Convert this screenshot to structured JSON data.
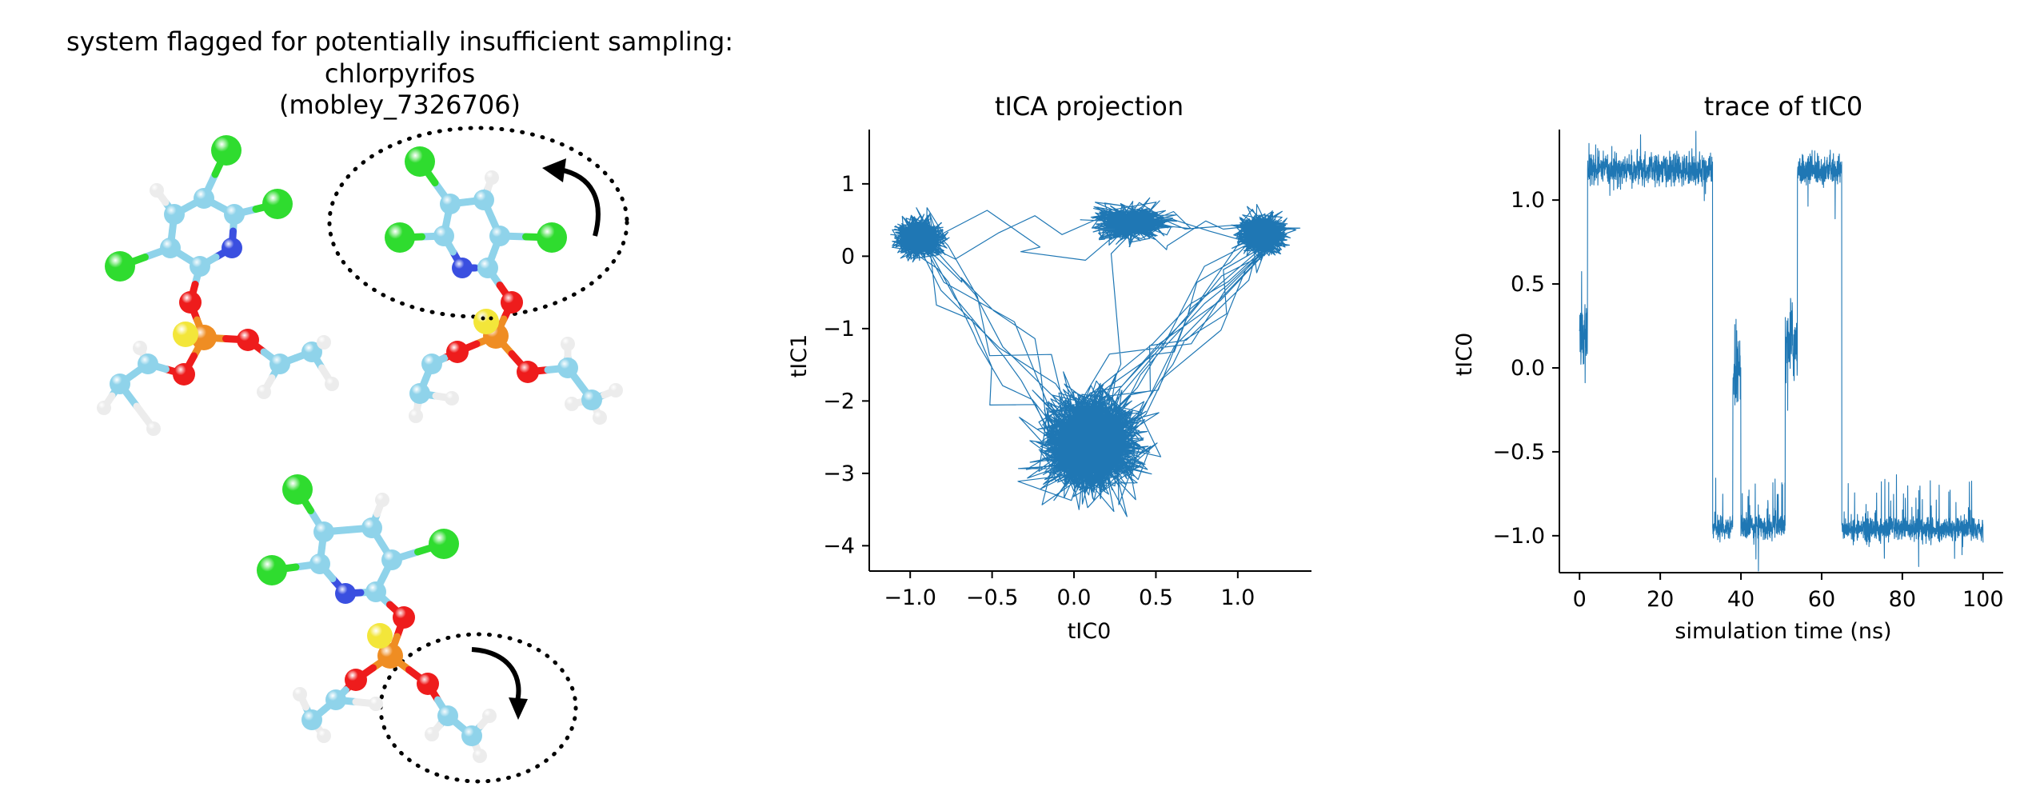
{
  "molecule_panel": {
    "title_line1": "system flagged for potentially insufficient sampling:",
    "title_line2": "chlorpyrifos",
    "title_line3": "(mobley_7326706)",
    "colors": {
      "carbon": "#8fd3ea",
      "chlorine": "#2fdc2f",
      "nitrogen": "#3a4fe0",
      "oxygen": "#ee1c1c",
      "phosphorus": "#ef8d23",
      "sulfur": "#f3e63a",
      "hydrogen": "#ececec"
    }
  },
  "chart_data": [
    {
      "type": "line",
      "title": "tICA projection",
      "xlabel": "tIC0",
      "ylabel": "tIC1",
      "xlim": [
        -1.25,
        1.45
      ],
      "ylim": [
        -4.35,
        1.75
      ],
      "xticks": [
        -1.0,
        -0.5,
        0.0,
        0.5,
        1.0
      ],
      "xtick_labels": [
        "−1.0",
        "−0.5",
        "0.0",
        "0.5",
        "1.0"
      ],
      "yticks": [
        1,
        0,
        -1,
        -2,
        -3,
        -4
      ],
      "ytick_labels": [
        "1",
        "0",
        "−1",
        "−2",
        "−3",
        "−4"
      ],
      "color": "#1f77b4",
      "grid": false,
      "clusters": [
        {
          "x": -0.95,
          "y": 0.25
        },
        {
          "x": 0.35,
          "y": 0.45
        },
        {
          "x": 1.15,
          "y": 0.3
        },
        {
          "x": 0.1,
          "y": -2.6
        }
      ]
    },
    {
      "type": "line",
      "title": "trace of tIC0",
      "xlabel": "simulation time (ns)",
      "ylabel": "tIC0",
      "xlim": [
        -5,
        105
      ],
      "ylim": [
        -1.22,
        1.42
      ],
      "xticks": [
        0,
        20,
        40,
        60,
        80,
        100
      ],
      "xtick_labels": [
        "0",
        "20",
        "40",
        "60",
        "80",
        "100"
      ],
      "yticks": [
        1.0,
        0.5,
        0.0,
        -0.5,
        -1.0
      ],
      "ytick_labels": [
        "1.0",
        "0.5",
        "0.0",
        "−0.5",
        "−1.0"
      ],
      "color": "#1f77b4",
      "grid": false,
      "segments": [
        {
          "t0": 0,
          "t1": 2,
          "level": 0.2
        },
        {
          "t0": 2,
          "t1": 19,
          "level": 1.18
        },
        {
          "t0": 19,
          "t1": 33,
          "level": 1.18
        },
        {
          "t0": 33,
          "t1": 38,
          "level": -0.95
        },
        {
          "t0": 38,
          "t1": 40,
          "level": 0.0
        },
        {
          "t0": 40,
          "t1": 51,
          "level": -0.95
        },
        {
          "t0": 51,
          "t1": 54,
          "level": 0.15
        },
        {
          "t0": 54,
          "t1": 65,
          "level": 1.18
        },
        {
          "t0": 65,
          "t1": 100,
          "level": -0.96
        }
      ]
    }
  ]
}
